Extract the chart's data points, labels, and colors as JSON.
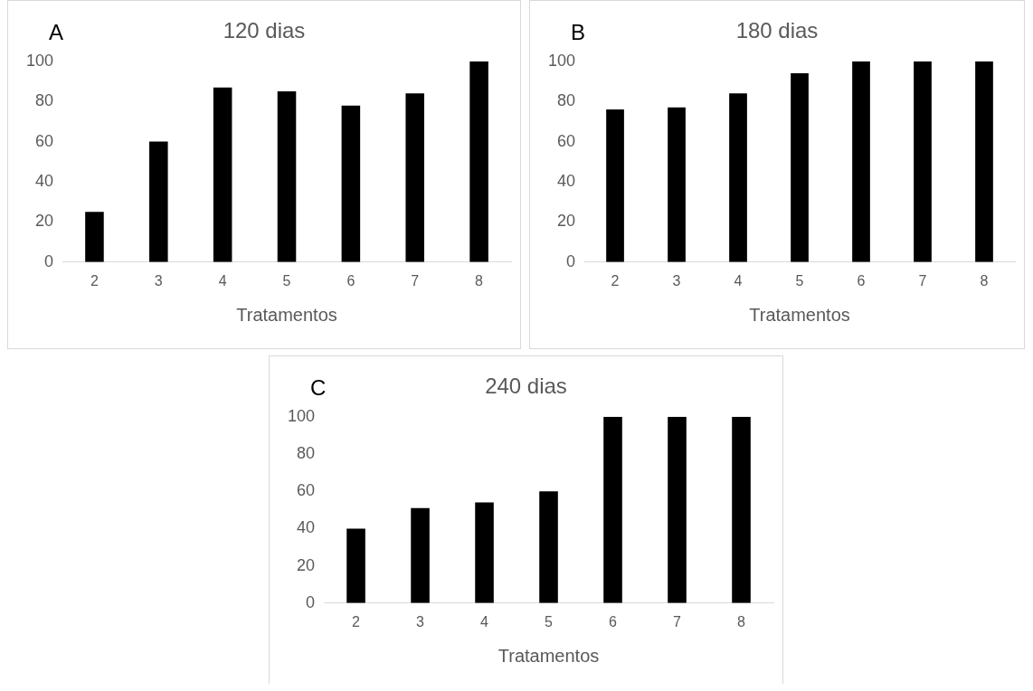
{
  "chart_data": [
    {
      "type": "bar",
      "title": "120 dias",
      "xlabel": "Tratamentos",
      "annotations": [
        "A"
      ],
      "categories": [
        "2",
        "3",
        "4",
        "5",
        "6",
        "7",
        "8"
      ],
      "values": [
        25,
        60,
        87,
        85,
        78,
        84,
        100
      ],
      "color": "#000000",
      "ylim": [
        0,
        100
      ],
      "yticks": [
        0,
        20,
        40,
        60,
        80,
        100
      ],
      "grid": false,
      "legend": false
    },
    {
      "type": "bar",
      "title": "180 dias",
      "xlabel": "Tratamentos",
      "annotations": [
        "B"
      ],
      "categories": [
        "2",
        "3",
        "4",
        "5",
        "6",
        "7",
        "8"
      ],
      "values": [
        76,
        77,
        84,
        94,
        100,
        100,
        100
      ],
      "color": "#000000",
      "ylim": [
        0,
        100
      ],
      "yticks": [
        0,
        20,
        40,
        60,
        80,
        100
      ],
      "grid": false,
      "legend": false
    },
    {
      "type": "bar",
      "title": "240 dias",
      "xlabel": "Tratamentos",
      "annotations": [
        "C"
      ],
      "categories": [
        "2",
        "3",
        "4",
        "5",
        "6",
        "7",
        "8"
      ],
      "values": [
        40,
        51,
        54,
        60,
        100,
        100,
        100
      ],
      "color": "#000000",
      "ylim": [
        0,
        100
      ],
      "yticks": [
        0,
        20,
        40,
        60,
        80,
        100
      ],
      "grid": false,
      "legend": false
    }
  ]
}
